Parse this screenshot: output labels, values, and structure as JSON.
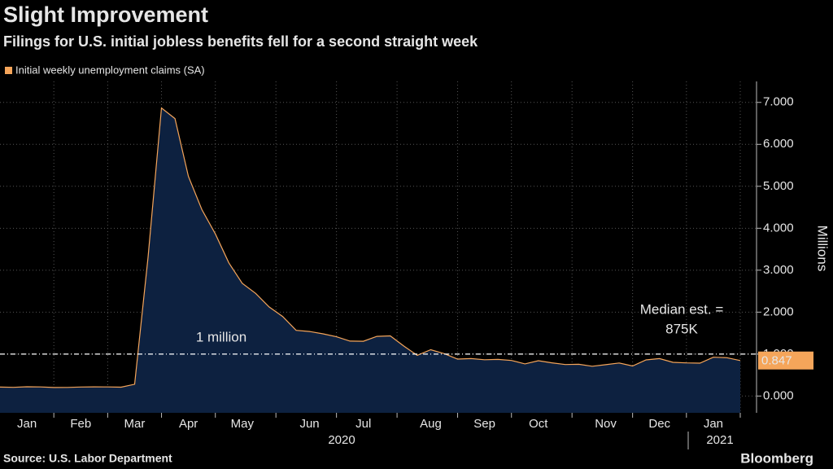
{
  "chart_data": {
    "type": "area",
    "title": "Slight Improvement",
    "subtitle": "Filings for U.S. initial jobless benefits fell for a second straight week",
    "y_axis_label": "Millions",
    "source": "Source: U.S. Labor Department",
    "brand": "Bloomberg",
    "categories": [
      null,
      null,
      "Jan",
      null,
      null,
      null,
      "Feb",
      null,
      null,
      null,
      "Mar",
      null,
      null,
      null,
      "Apr",
      null,
      null,
      null,
      "May",
      null,
      null,
      null,
      null,
      "Jun",
      null,
      null,
      null,
      "Jul",
      null,
      null,
      null,
      null,
      "Aug",
      null,
      null,
      null,
      "Sep",
      null,
      null,
      null,
      "Oct",
      null,
      null,
      null,
      null,
      "Nov",
      null,
      null,
      null,
      "Dec",
      null,
      null,
      null,
      "Jan",
      null,
      null
    ],
    "years": [
      "2020",
      "2021"
    ],
    "series": [
      {
        "name": "Initial weekly unemployment claims (SA)",
        "color": "#f5a55a",
        "fill": "#0d2140",
        "values": [
          0.214,
          0.207,
          0.222,
          0.217,
          0.203,
          0.206,
          0.215,
          0.219,
          0.217,
          0.211,
          0.282,
          3.307,
          6.867,
          6.615,
          5.237,
          4.442,
          3.867,
          3.176,
          2.687,
          2.446,
          2.123,
          1.897,
          1.566,
          1.54,
          1.482,
          1.413,
          1.31,
          1.307,
          1.422,
          1.435,
          1.191,
          0.971,
          1.104,
          1.011,
          0.881,
          0.893,
          0.866,
          0.873,
          0.849,
          0.767,
          0.842,
          0.791,
          0.751,
          0.757,
          0.711,
          0.748,
          0.787,
          0.716,
          0.862,
          0.892,
          0.803,
          0.79,
          0.784,
          0.926,
          0.914,
          0.847
        ]
      }
    ],
    "ylim": [
      -0.4,
      7.5
    ],
    "yticks": [
      {
        "value": 0,
        "label": "0.000"
      },
      {
        "value": 1,
        "label": "1.000"
      },
      {
        "value": 2,
        "label": "2.000"
      },
      {
        "value": 3,
        "label": "3.000"
      },
      {
        "value": 4,
        "label": "4.000"
      },
      {
        "value": 5,
        "label": "5.000"
      },
      {
        "value": 6,
        "label": "6.000"
      },
      {
        "value": 7,
        "label": "7.000"
      }
    ],
    "grid": true,
    "reference_line": {
      "value": 1,
      "label": "1 million"
    },
    "annotation_lines": [
      "Median est. =",
      "875K"
    ],
    "annotation_color": "#f5a55a"
  }
}
